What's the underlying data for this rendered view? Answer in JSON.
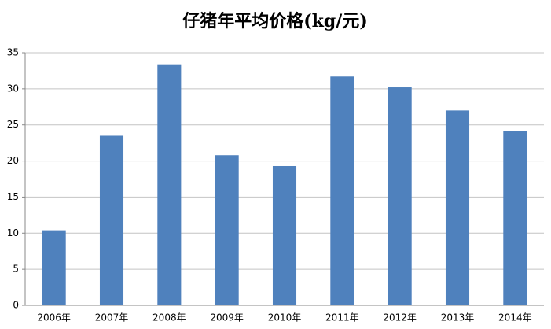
{
  "chart_data": {
    "type": "bar",
    "title": "仔猪年平均价格(kg/元)",
    "categories": [
      "2006年",
      "2007年",
      "2008年",
      "2009年",
      "2010年",
      "2011年",
      "2012年",
      "2013年",
      "2014年"
    ],
    "values": [
      10.4,
      23.5,
      33.4,
      20.8,
      19.3,
      31.7,
      30.2,
      27.0,
      24.2
    ],
    "color": "#4f81bd",
    "ylim": [
      0,
      35
    ],
    "yticks": [
      0,
      5,
      10,
      15,
      20,
      25,
      30,
      35
    ],
    "grid": true
  }
}
